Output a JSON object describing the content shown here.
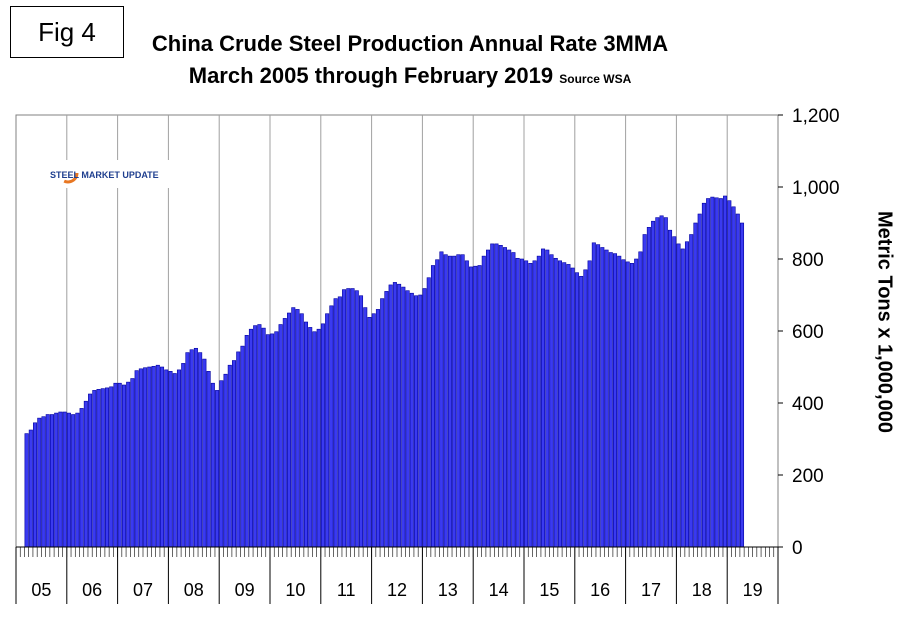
{
  "fig_label": "Fig 4",
  "logo_text": "STEEL MARKET UPDATE",
  "colors": {
    "bar_fill": "#3a3af0",
    "bar_stroke": "#0000a0",
    "grid": "#a0a0a0"
  },
  "chart_data": {
    "type": "bar",
    "title": "China Crude Steel Production Annual Rate 3MMA",
    "subtitle": "March 2005 through February 2019",
    "source": "Source WSA",
    "ylabel": "Metric Tons x 1,000,000",
    "ylim": [
      0,
      1200
    ],
    "yticks": [
      "0",
      "200",
      "400",
      "600",
      "800",
      "1,000",
      "1,200"
    ],
    "ytick_values": [
      0,
      200,
      400,
      600,
      800,
      1000,
      1200
    ],
    "y_axis_side": "right",
    "grid": "vertical at year boundaries",
    "x_start": "2005-03",
    "x_end": "2019-02",
    "year_labels": [
      "05",
      "06",
      "07",
      "08",
      "09",
      "10",
      "11",
      "12",
      "13",
      "14",
      "15",
      "16",
      "17",
      "18",
      "19"
    ],
    "series": [
      {
        "values": [
          315,
          325,
          345,
          358,
          362,
          368,
          368,
          372,
          375,
          375,
          372,
          368,
          372,
          385,
          405,
          425,
          435,
          438,
          440,
          442,
          445,
          455,
          455,
          450,
          458,
          468,
          490,
          495,
          498,
          500,
          502,
          505,
          500,
          492,
          488,
          482,
          492,
          510,
          540,
          548,
          552,
          540,
          522,
          488,
          455,
          435,
          462,
          480,
          505,
          518,
          542,
          558,
          588,
          605,
          615,
          618,
          608,
          590,
          592,
          598,
          618,
          635,
          650,
          665,
          660,
          648,
          625,
          610,
          598,
          605,
          620,
          648,
          670,
          690,
          695,
          715,
          718,
          718,
          712,
          698,
          665,
          638,
          648,
          660,
          690,
          710,
          728,
          735,
          730,
          722,
          712,
          705,
          698,
          700,
          718,
          748,
          782,
          798,
          820,
          812,
          808,
          808,
          812,
          812,
          795,
          778,
          780,
          782,
          808,
          825,
          842,
          842,
          838,
          832,
          825,
          818,
          802,
          800,
          795,
          788,
          795,
          808,
          828,
          825,
          812,
          802,
          795,
          790,
          785,
          775,
          762,
          752,
          770,
          795,
          845,
          840,
          832,
          825,
          818,
          815,
          808,
          798,
          792,
          788,
          800,
          820,
          868,
          888,
          905,
          915,
          920,
          915,
          880,
          862,
          842,
          828,
          848,
          868,
          900,
          925,
          955,
          968,
          972,
          970,
          968,
          975,
          962,
          945,
          925,
          900
        ]
      }
    ]
  }
}
